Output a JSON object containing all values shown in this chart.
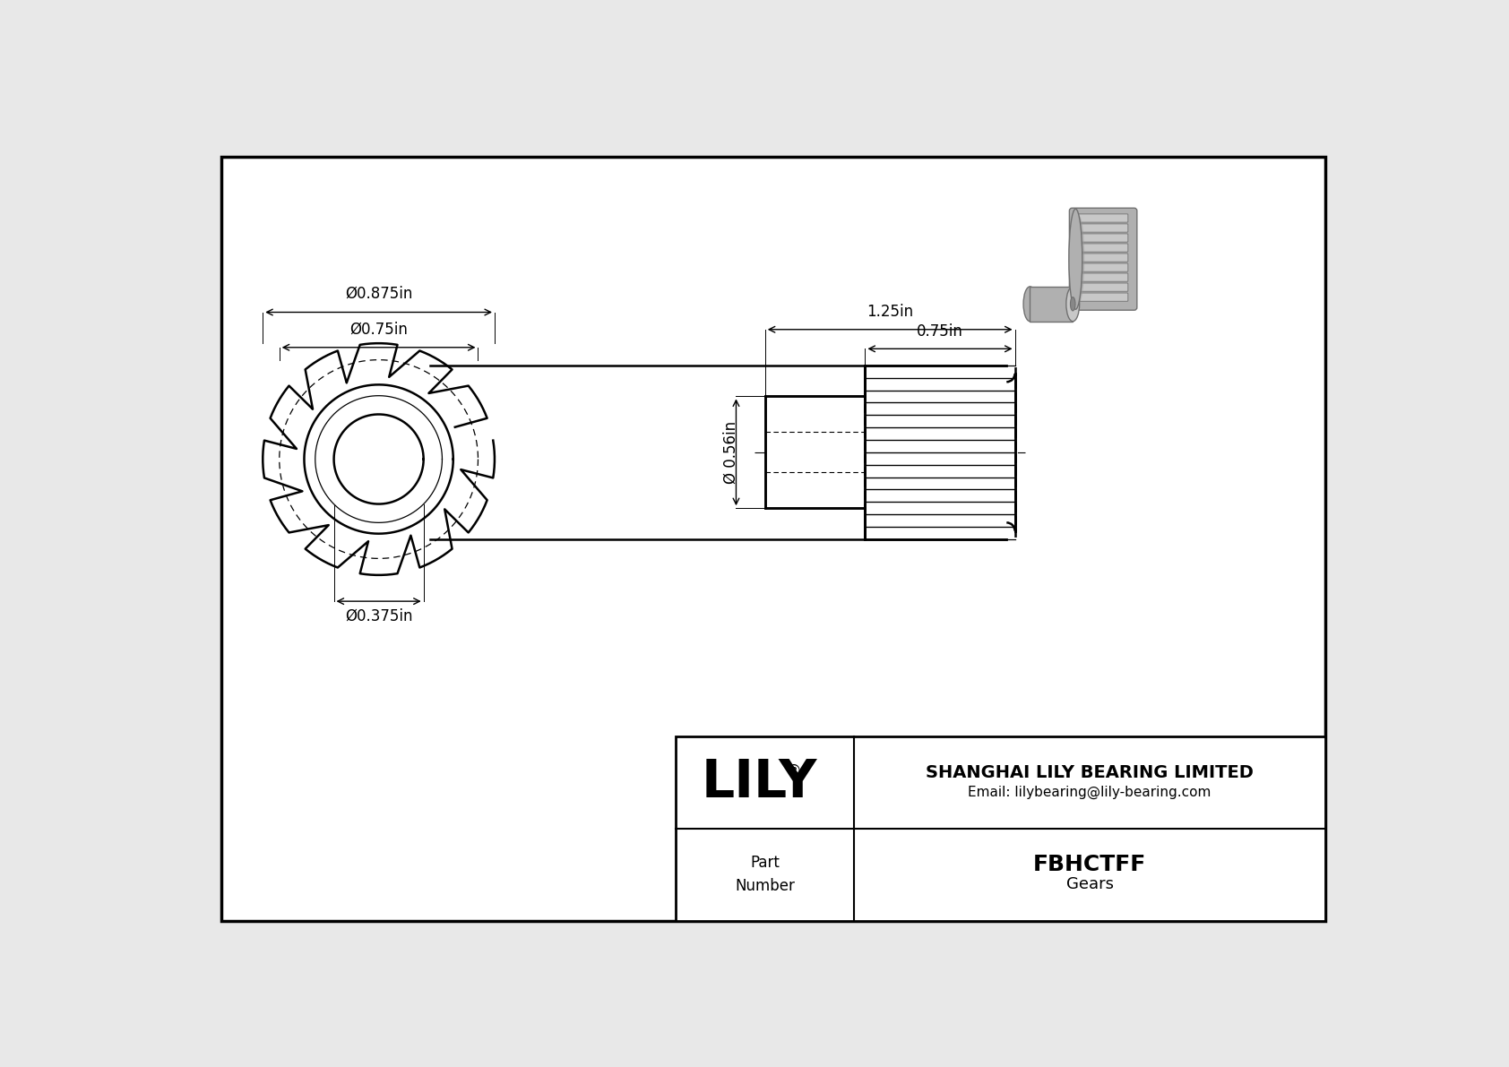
{
  "bg_color": "#e8e8e8",
  "inner_bg": "#ffffff",
  "line_color": "#000000",
  "dim_color": "#000000",
  "company": "SHANGHAI LILY BEARING LIMITED",
  "email": "Email: lilybearing@lily-bearing.com",
  "part_number": "FBHCTFF",
  "part_type": "Gears",
  "part_label": "Part\nNumber",
  "logo_text": "LILY",
  "dim_outer": "Ø0.875in",
  "dim_pitch": "Ø0.75in",
  "dim_bore": "Ø0.375in",
  "dim_hub": "Ø 0.56in",
  "dim_length": "1.25in",
  "dim_gear_length": "0.75in",
  "num_teeth": 12,
  "gray1": "#9a9a9a",
  "gray2": "#b0b0b0",
  "gray3": "#c8c8c8",
  "gray4": "#707070"
}
